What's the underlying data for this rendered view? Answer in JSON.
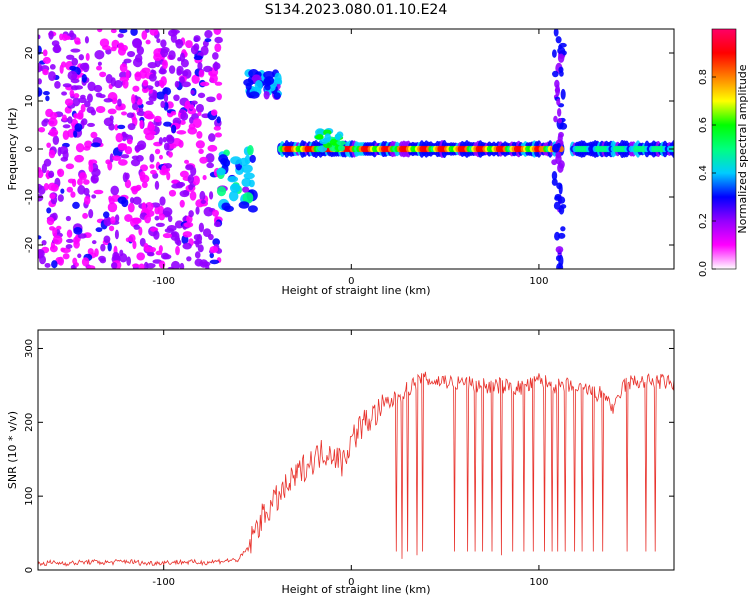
{
  "title": "S134.2023.080.01.10.E24",
  "chart_data": [
    {
      "type": "heatmap",
      "xlabel": "Height of straight line (km)",
      "ylabel": "Frequency (Hz)",
      "xlim": [
        -167,
        172
      ],
      "ylim": [
        -25,
        25
      ],
      "x_ticks": [
        -100,
        0,
        100
      ],
      "y_ticks": [
        -20,
        -10,
        0,
        10,
        20
      ],
      "grid": false,
      "colorbar": {
        "label": "Normalized spectral amplitude",
        "range": [
          0,
          1
        ],
        "ticks": [
          0.0,
          0.2,
          0.4,
          0.6,
          0.8
        ],
        "tick_labels": [
          "0.0",
          "0.2",
          "0.4",
          "0.6",
          "0.8"
        ],
        "colormap": [
          "#ffffff",
          "#ff00ff",
          "#9400ff",
          "#0000ff",
          "#00ccff",
          "#00ff80",
          "#00ff00",
          "#ffff00",
          "#ff8000",
          "#ff0000",
          "#ff0066"
        ]
      },
      "regions": [
        {
          "x_range": [
            -167,
            -70
          ],
          "f_range": [
            -25,
            25
          ],
          "amplitude": 0.05,
          "pattern": "noise"
        },
        {
          "x_range": [
            -70,
            -52
          ],
          "f_range": [
            -13,
            0
          ],
          "amplitude": 0.45,
          "pattern": "blob"
        },
        {
          "x_range": [
            -55,
            -38
          ],
          "f_range": [
            11,
            16
          ],
          "amplitude": 0.4,
          "pattern": "blob"
        },
        {
          "x_range": [
            -38,
            112
          ],
          "f_range": [
            -1,
            1
          ],
          "amplitude": 0.9,
          "pattern": "trace"
        },
        {
          "x_range": [
            -18,
            -5
          ],
          "f_range": [
            0,
            4
          ],
          "amplitude": 0.6,
          "pattern": "bump"
        },
        {
          "x_range": [
            108,
            113
          ],
          "f_range": [
            -25,
            25
          ],
          "amplitude": 0.15,
          "pattern": "vertical"
        },
        {
          "x_range": [
            118,
            172
          ],
          "f_range": [
            -1,
            1
          ],
          "amplitude": 0.55,
          "pattern": "trace"
        }
      ]
    },
    {
      "type": "line",
      "xlabel": "Height of straight line (km)",
      "ylabel": "SNR (10 * v/v)",
      "xlim": [
        -167,
        172
      ],
      "ylim": [
        0,
        325
      ],
      "x_ticks": [
        -100,
        0,
        100
      ],
      "y_ticks": [
        0,
        100,
        200,
        300
      ],
      "grid": false,
      "color": "#e8312b",
      "series": [
        {
          "name": "",
          "x": [
            -167,
            -160,
            -150,
            -140,
            -130,
            -120,
            -110,
            -100,
            -90,
            -80,
            -70,
            -60,
            -55,
            -50,
            -45,
            -40,
            -35,
            -30,
            -25,
            -20,
            -15,
            -10,
            -5,
            0,
            5,
            10,
            15,
            20,
            25,
            30,
            35,
            40,
            45,
            50,
            55,
            60,
            65,
            70,
            75,
            80,
            85,
            90,
            95,
            100,
            105,
            110,
            115,
            120,
            125,
            130,
            135,
            140,
            145,
            150,
            155,
            160,
            165,
            172
          ],
          "y": [
            8,
            10,
            9,
            11,
            10,
            12,
            9,
            10,
            11,
            10,
            12,
            14,
            30,
            60,
            80,
            95,
            110,
            125,
            140,
            150,
            160,
            160,
            145,
            175,
            195,
            205,
            215,
            225,
            235,
            245,
            255,
            258,
            255,
            257,
            252,
            255,
            250,
            250,
            248,
            250,
            248,
            246,
            250,
            258,
            252,
            248,
            250,
            242,
            245,
            238,
            240,
            215,
            250,
            255,
            255,
            255,
            255,
            252
          ]
        }
      ],
      "dips": [
        {
          "x": 24,
          "y": 25
        },
        {
          "x": 27,
          "y": 15
        },
        {
          "x": 30,
          "y": 25
        },
        {
          "x": 35,
          "y": 20
        },
        {
          "x": 38,
          "y": 25
        },
        {
          "x": 55,
          "y": 25
        },
        {
          "x": 62,
          "y": 25
        },
        {
          "x": 66,
          "y": 25
        },
        {
          "x": 70,
          "y": 25
        },
        {
          "x": 75,
          "y": 25
        },
        {
          "x": 80,
          "y": 20
        },
        {
          "x": 86,
          "y": 25
        },
        {
          "x": 92,
          "y": 25
        },
        {
          "x": 97,
          "y": 25
        },
        {
          "x": 103,
          "y": 25
        },
        {
          "x": 107,
          "y": 25
        },
        {
          "x": 110,
          "y": 25
        },
        {
          "x": 114,
          "y": 25
        },
        {
          "x": 119,
          "y": 25
        },
        {
          "x": 123,
          "y": 25
        },
        {
          "x": 129,
          "y": 25
        },
        {
          "x": 134,
          "y": 25
        },
        {
          "x": 147,
          "y": 25
        },
        {
          "x": 157,
          "y": 25
        },
        {
          "x": 162,
          "y": 25
        }
      ]
    }
  ]
}
